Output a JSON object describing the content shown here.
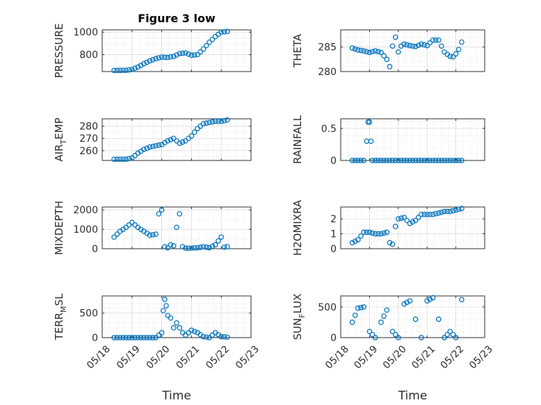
{
  "chart_data": [
    {
      "type": "scatter",
      "title": "Figure 3 low",
      "ylabel": "PRESSURE",
      "ylim": [
        650,
        1020
      ],
      "yticks": [
        800,
        1000
      ],
      "yminor": [
        650,
        700,
        750,
        850,
        900,
        950
      ],
      "xlim": [
        "05/18",
        "05/23"
      ],
      "xticks": [
        "05/18",
        "05/19",
        "05/20",
        "05/21",
        "05/22",
        "05/23"
      ],
      "xticklabels": false,
      "color": "#0072bd",
      "x": [
        0.4,
        0.6,
        0.8,
        1.0,
        1.2,
        1.4,
        1.6,
        1.8,
        2.0,
        2.2,
        2.4,
        2.6,
        2.8,
        3.0,
        3.2,
        3.4,
        3.6,
        3.8,
        4.0,
        4.2
      ],
      "y": [
        660,
        660,
        662,
        668,
        690,
        720,
        745,
        765,
        778,
        775,
        785,
        810,
        815,
        795,
        800,
        850,
        910,
        960,
        1000,
        1005
      ]
    },
    {
      "type": "scatter",
      "ylabel": "THETA",
      "ylim": [
        280,
        288.5
      ],
      "yticks": [
        280,
        285
      ],
      "yminor": [
        281,
        282,
        283,
        284,
        286,
        287,
        288
      ],
      "xlim": [
        "05/18",
        "05/23"
      ],
      "xticks": [
        "05/18",
        "05/19",
        "05/20",
        "05/21",
        "05/22",
        "05/23"
      ],
      "xticklabels": false,
      "color": "#0072bd",
      "x": [
        0.4,
        0.6,
        0.8,
        1.0,
        1.2,
        1.4,
        1.5,
        1.6,
        1.7,
        1.8,
        1.9,
        2.0,
        2.1,
        2.2,
        2.4,
        2.6,
        2.8,
        3.0,
        3.2,
        3.4,
        3.6,
        3.7,
        3.8,
        3.9,
        4.0,
        4.1,
        4.2
      ],
      "y": [
        284.8,
        284.4,
        284.2,
        283.9,
        284.2,
        283.9,
        283.2,
        282.5,
        281.0,
        285.2,
        287.0,
        284.0,
        285.2,
        285.6,
        285.3,
        285.1,
        285.6,
        285.3,
        286.4,
        286.4,
        284.0,
        283.5,
        283.1,
        283.0,
        283.6,
        284.5,
        286.0
      ]
    },
    {
      "type": "scatter",
      "ylabel": "AIR_TEMP",
      "ylim": [
        252,
        286
      ],
      "yticks": [
        260,
        270,
        280
      ],
      "yminor": [
        255,
        265,
        275,
        285
      ],
      "xlim": [
        "05/18",
        "05/23"
      ],
      "xticks": [
        "05/18",
        "05/19",
        "05/20",
        "05/21",
        "05/22",
        "05/23"
      ],
      "xticklabels": false,
      "color": "#0072bd",
      "x": [
        0.4,
        0.6,
        0.8,
        1.0,
        1.2,
        1.4,
        1.6,
        1.8,
        2.0,
        2.2,
        2.4,
        2.6,
        2.8,
        3.0,
        3.2,
        3.4,
        3.6,
        3.8,
        4.0,
        4.2
      ],
      "y": [
        253,
        253,
        253,
        254,
        258,
        261,
        263,
        264,
        265,
        268,
        270,
        266,
        268,
        272,
        278,
        282,
        283,
        284,
        284,
        285
      ]
    },
    {
      "type": "scatter",
      "ylabel": "RAINFALL",
      "ylim": [
        0,
        0.65
      ],
      "yticks": [
        0,
        0.5
      ],
      "yminor": [
        0.1,
        0.2,
        0.3,
        0.4,
        0.6
      ],
      "xlim": [
        "05/18",
        "05/23"
      ],
      "xticks": [
        "05/18",
        "05/19",
        "05/20",
        "05/21",
        "05/22",
        "05/23"
      ],
      "xticklabels": false,
      "color": "#0072bd",
      "x": [
        0.4,
        0.6,
        0.8,
        0.9,
        0.95,
        1.0,
        1.05,
        1.1,
        1.2,
        1.4,
        1.6,
        1.8,
        2.0,
        2.2,
        2.4,
        2.6,
        2.8,
        3.0,
        3.2,
        3.4,
        3.6,
        3.8,
        4.0,
        4.2
      ],
      "y": [
        0,
        0,
        0,
        0.3,
        0.6,
        0.6,
        0.3,
        0,
        0,
        0,
        0,
        0,
        0,
        0,
        0,
        0,
        0,
        0,
        0,
        0,
        0,
        0,
        0,
        0
      ]
    },
    {
      "type": "scatter",
      "ylabel": "MIXDEPTH",
      "ylim": [
        0,
        2150
      ],
      "yticks": [
        0,
        1000,
        2000
      ],
      "yminor": [
        500,
        1500
      ],
      "xlim": [
        "05/18",
        "05/23"
      ],
      "xticks": [
        "05/18",
        "05/19",
        "05/20",
        "05/21",
        "05/22",
        "05/23"
      ],
      "xticklabels": false,
      "color": "#0072bd",
      "x": [
        0.4,
        0.6,
        0.8,
        1.0,
        1.2,
        1.4,
        1.6,
        1.8,
        1.9,
        2.0,
        2.1,
        2.2,
        2.3,
        2.4,
        2.5,
        2.6,
        2.7,
        2.8,
        2.9,
        3.0,
        3.2,
        3.4,
        3.6,
        3.8,
        4.0,
        4.1,
        4.2
      ],
      "y": [
        600,
        900,
        1100,
        1350,
        1100,
        900,
        700,
        750,
        1800,
        2000,
        100,
        50,
        200,
        150,
        1100,
        1800,
        100,
        30,
        20,
        30,
        50,
        100,
        50,
        200,
        600,
        80,
        100
      ]
    },
    {
      "type": "scatter",
      "ylabel": "H2OMIXRA",
      "ylim": [
        0,
        2.8
      ],
      "yticks": [
        0,
        1,
        2
      ],
      "yminor": [
        0.5,
        1.5,
        2.5
      ],
      "xlim": [
        "05/18",
        "05/23"
      ],
      "xticks": [
        "05/18",
        "05/19",
        "05/20",
        "05/21",
        "05/22",
        "05/23"
      ],
      "xticklabels": false,
      "color": "#0072bd",
      "x": [
        0.4,
        0.6,
        0.8,
        1.0,
        1.2,
        1.4,
        1.6,
        1.7,
        1.8,
        1.9,
        2.0,
        2.2,
        2.4,
        2.6,
        2.8,
        3.0,
        3.2,
        3.4,
        3.6,
        3.8,
        4.0,
        4.2
      ],
      "y": [
        0.4,
        0.6,
        1.1,
        1.1,
        1.0,
        1.0,
        1.1,
        0.4,
        0.3,
        1.5,
        2.0,
        2.1,
        1.7,
        1.9,
        2.3,
        2.3,
        2.3,
        2.4,
        2.5,
        2.5,
        2.6,
        2.7
      ]
    },
    {
      "type": "scatter",
      "ylabel": "TERR_MSL",
      "ylim": [
        0,
        850
      ],
      "yticks": [
        0,
        500
      ],
      "yminor": [
        100,
        200,
        300,
        400,
        600,
        700,
        800
      ],
      "xlim": [
        "05/18",
        "05/23"
      ],
      "xticks": [
        "05/18",
        "05/19",
        "05/20",
        "05/21",
        "05/22",
        "05/23"
      ],
      "xticklabels": [
        "05/18",
        "05/19",
        "05/20",
        "05/21",
        "05/22",
        "05/23"
      ],
      "xlabel": "Time",
      "color": "#0072bd",
      "x": [
        0.4,
        0.6,
        0.8,
        1.0,
        1.2,
        1.4,
        1.6,
        1.8,
        2.0,
        2.05,
        2.1,
        2.15,
        2.2,
        2.3,
        2.4,
        2.5,
        2.6,
        2.7,
        2.8,
        3.0,
        3.2,
        3.4,
        3.6,
        3.8,
        4.0,
        4.2
      ],
      "y": [
        0,
        0,
        0,
        0,
        0,
        0,
        0,
        0,
        100,
        550,
        780,
        650,
        450,
        400,
        200,
        300,
        200,
        100,
        50,
        150,
        100,
        20,
        0,
        100,
        20,
        10
      ]
    },
    {
      "type": "scatter",
      "ylabel": "SUN_FLUX",
      "ylim": [
        0,
        680
      ],
      "yticks": [
        0,
        500
      ],
      "yminor": [
        100,
        200,
        300,
        400,
        600
      ],
      "xlim": [
        "05/18",
        "05/23"
      ],
      "xticks": [
        "05/18",
        "05/19",
        "05/20",
        "05/21",
        "05/22",
        "05/23"
      ],
      "xticklabels": [
        "05/18",
        "05/19",
        "05/20",
        "05/21",
        "05/22",
        "05/23"
      ],
      "xlabel": "Time",
      "color": "#0072bd",
      "x": [
        0.4,
        0.6,
        0.8,
        1.0,
        1.2,
        1.4,
        1.6,
        1.8,
        2.0,
        2.2,
        2.4,
        2.6,
        2.8,
        3.0,
        3.2,
        3.4,
        3.6,
        3.8,
        4.0,
        4.2
      ],
      "y": [
        250,
        480,
        500,
        100,
        0,
        250,
        450,
        100,
        0,
        550,
        600,
        300,
        0,
        600,
        650,
        300,
        0,
        100,
        0,
        620
      ]
    }
  ]
}
